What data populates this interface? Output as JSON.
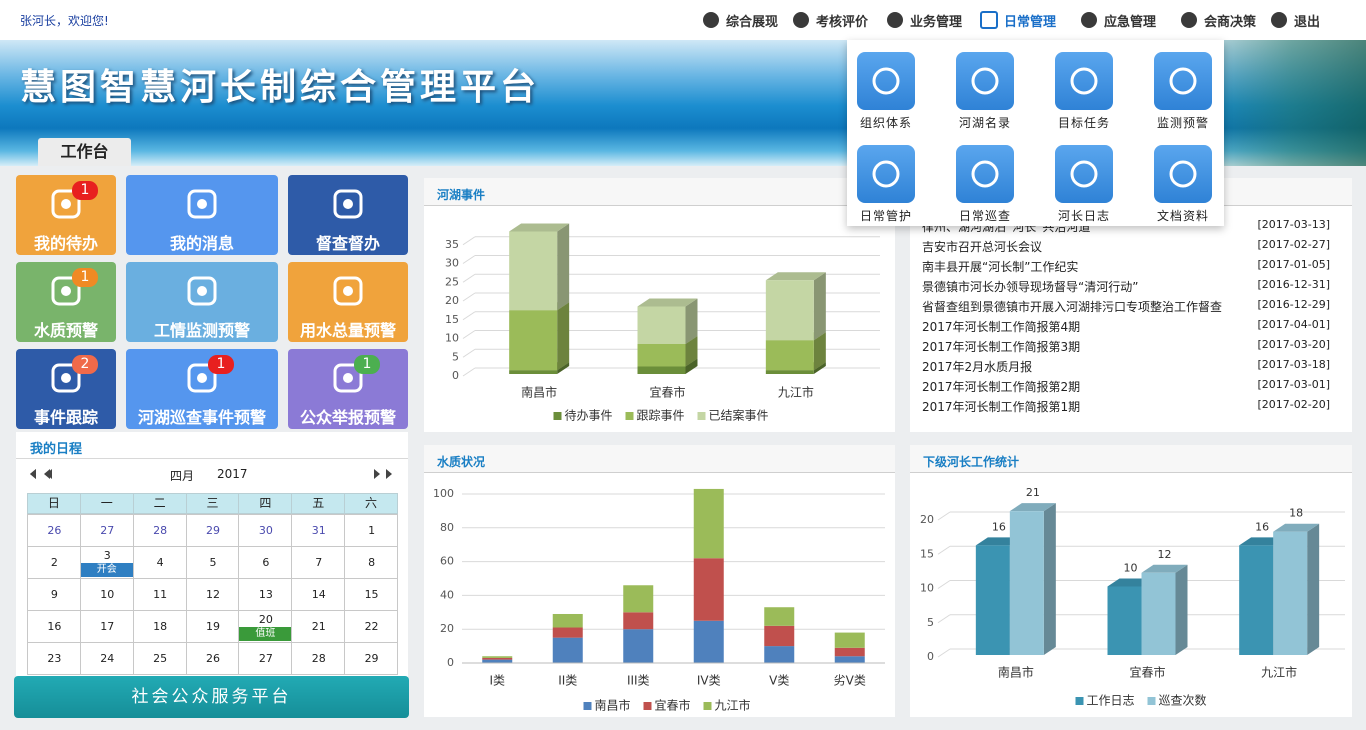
{
  "header": {
    "welcome": "张河长，欢迎您!",
    "nav": [
      "综合展现",
      "考核评价",
      "业务管理",
      "日常管理",
      "应急管理",
      "会商决策",
      "退出"
    ],
    "active_nav": 3
  },
  "banner": {
    "title": "慧图智慧河长制综合管理平台",
    "tab": "工作台"
  },
  "menu": {
    "items": [
      "组织体系",
      "河湖名录",
      "目标任务",
      "监测预警",
      "日常管护",
      "日常巡查",
      "河长日志",
      "文档资料"
    ]
  },
  "tiles": [
    {
      "label": "我的待办",
      "color": "#f0a33c",
      "badge": 1,
      "badge_color": "#e8201f"
    },
    {
      "label": "我的消息",
      "color": "#5596ee"
    },
    {
      "label": "督查督办",
      "color": "#2e5ba8"
    },
    {
      "label": "水质预警",
      "color": "#79b46b",
      "badge": 1,
      "badge_color": "#f08a24"
    },
    {
      "label": "工情监测预警",
      "color": "#6aafe0"
    },
    {
      "label": "用水总量预警",
      "color": "#f0a33c"
    },
    {
      "label": "事件跟踪",
      "color": "#2e5ba8",
      "badge": 2,
      "badge_color": "#f06a4a"
    },
    {
      "label": "河湖巡查事件预警",
      "color": "#5596ee",
      "badge": 1,
      "badge_color": "#e8201f"
    },
    {
      "label": "公众举报预警",
      "color": "#8b7ad6",
      "badge": 1,
      "badge_color": "#4caf50"
    }
  ],
  "schedule": {
    "title": "我的日程",
    "month": "四月",
    "year": 2017,
    "weekdays": [
      "日",
      "一",
      "二",
      "三",
      "四",
      "五",
      "六"
    ],
    "weeks": [
      [
        26,
        27,
        28,
        29,
        30,
        31,
        1
      ],
      [
        2,
        3,
        4,
        5,
        6,
        7,
        8
      ],
      [
        9,
        10,
        11,
        12,
        13,
        14,
        15
      ],
      [
        16,
        17,
        18,
        19,
        20,
        21,
        22
      ],
      [
        23,
        24,
        25,
        26,
        27,
        28,
        29
      ]
    ],
    "events": [
      {
        "week": 1,
        "day": 1,
        "label": "开会",
        "color": "#2f7fc2"
      },
      {
        "week": 3,
        "day": 4,
        "label": "值班",
        "color": "#3a9a3a"
      }
    ]
  },
  "service_button": "社会公众服务平台",
  "news": {
    "items": [
      {
        "title": "律州、湖河湖泊“河长”共治河道",
        "date": "[2017-03-13]"
      },
      {
        "title": "吉安市召开总河长会议",
        "date": "[2017-02-27]"
      },
      {
        "title": "南丰县开展“河长制”工作纪实",
        "date": "[2017-01-05]"
      },
      {
        "title": "景德镇市河长办领导现场督导“清河行动”",
        "date": "[2016-12-31]"
      },
      {
        "title": "省督查组到景德镇市开展入河湖排污口专项整治工作督查",
        "date": "[2016-12-29]"
      },
      {
        "title": "2017年河长制工作简报第4期",
        "date": "[2017-04-01]"
      },
      {
        "title": "2017年河长制工作简报第3期",
        "date": "[2017-03-20]"
      },
      {
        "title": "2017年2月水质月报",
        "date": "[2017-03-18]"
      },
      {
        "title": "2017年河长制工作简报第2期",
        "date": "[2017-03-01]"
      },
      {
        "title": "2017年河长制工作简报第1期",
        "date": "[2017-02-20]"
      }
    ]
  },
  "chart_data": [
    {
      "type": "bar",
      "title": "河湖事件",
      "stacked": true,
      "three_d": true,
      "categories": [
        "南昌市",
        "宜春市",
        "九江市"
      ],
      "series": [
        {
          "name": "待办事件",
          "color": "#6b8e3a",
          "values": [
            1,
            2,
            1
          ]
        },
        {
          "name": "跟踪事件",
          "color": "#9bbb59",
          "values": [
            16,
            6,
            8
          ]
        },
        {
          "name": "已结案事件",
          "color": "#c4d6a4",
          "values": [
            21,
            10,
            16
          ]
        }
      ],
      "ylim": [
        0,
        40
      ],
      "yticks": [
        0,
        5,
        10,
        15,
        20,
        25,
        30,
        35
      ],
      "grid": true
    },
    {
      "type": "bar",
      "title": "水质状况",
      "stacked": true,
      "categories": [
        "I类",
        "II类",
        "III类",
        "IV类",
        "V类",
        "劣V类"
      ],
      "series": [
        {
          "name": "南昌市",
          "color": "#4f81bd",
          "values": [
            2,
            15,
            20,
            25,
            10,
            4
          ]
        },
        {
          "name": "宜春市",
          "color": "#c0504d",
          "values": [
            1,
            6,
            10,
            37,
            12,
            5
          ]
        },
        {
          "name": "九江市",
          "color": "#9bbb59",
          "values": [
            1,
            8,
            16,
            41,
            11,
            9
          ]
        }
      ],
      "ylim": [
        0,
        110
      ],
      "yticks": [
        0,
        20,
        40,
        60,
        80,
        100
      ],
      "grid": true
    },
    {
      "type": "bar",
      "title": "下级河长工作统计",
      "three_d": true,
      "data_labels": true,
      "categories": [
        "南昌市",
        "宜春市",
        "九江市"
      ],
      "series": [
        {
          "name": "工作日志",
          "color": "#3b94b2",
          "values": [
            16,
            10,
            16
          ]
        },
        {
          "name": "巡查次数",
          "color": "#92c4d6",
          "values": [
            21,
            12,
            18
          ]
        }
      ],
      "ylim": [
        0,
        25
      ],
      "yticks": [
        0,
        5,
        10,
        15,
        20
      ],
      "grid": true
    }
  ]
}
